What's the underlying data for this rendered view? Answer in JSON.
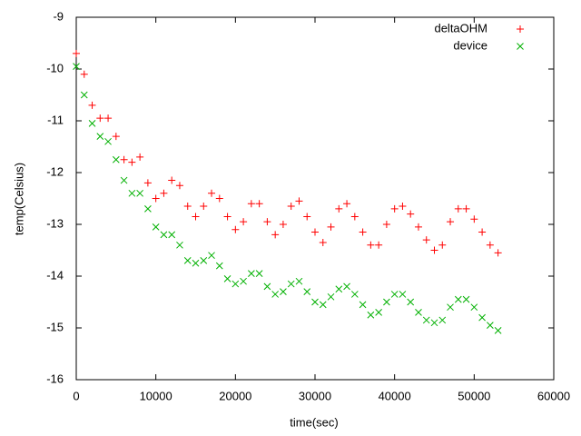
{
  "chart_data": {
    "type": "scatter",
    "xlabel": "time(sec)",
    "ylabel": "temp(Celsius)",
    "x": [
      0,
      1000,
      2000,
      3000,
      4000,
      5000,
      6000,
      7000,
      8000,
      9000,
      10000,
      11000,
      12000,
      13000,
      14000,
      15000,
      16000,
      17000,
      18000,
      19000,
      20000,
      21000,
      22000,
      23000,
      24000,
      25000,
      26000,
      27000,
      28000,
      29000,
      30000,
      31000,
      32000,
      33000,
      34000,
      35000,
      36000,
      37000,
      38000,
      39000,
      40000,
      41000,
      42000,
      43000,
      44000,
      45000,
      46000,
      47000,
      48000,
      49000,
      50000,
      51000,
      52000,
      53000
    ],
    "series": [
      {
        "name": "deltaOHM",
        "color": "#ff0000",
        "marker": "plus",
        "values": [
          -9.7,
          -10.1,
          -10.7,
          -10.95,
          -10.95,
          -11.3,
          -11.75,
          -11.8,
          -11.7,
          -12.2,
          -12.5,
          -12.4,
          -12.15,
          -12.25,
          -12.65,
          -12.85,
          -12.65,
          -12.4,
          -12.5,
          -12.85,
          -13.1,
          -12.95,
          -12.6,
          -12.6,
          -12.95,
          -13.2,
          -13.0,
          -12.65,
          -12.55,
          -12.85,
          -13.15,
          -13.35,
          -13.05,
          -12.7,
          -12.6,
          -12.85,
          -13.15,
          -13.4,
          -13.4,
          -13.0,
          -12.7,
          -12.65,
          -12.8,
          -13.05,
          -13.3,
          -13.5,
          -13.4,
          -12.95,
          -12.7,
          -12.7,
          -12.9,
          -13.15,
          -13.4,
          -13.55
        ]
      },
      {
        "name": "device",
        "color": "#00b000",
        "marker": "cross",
        "values": [
          -9.95,
          -10.5,
          -11.05,
          -11.3,
          -11.4,
          -11.75,
          -12.15,
          -12.4,
          -12.4,
          -12.7,
          -13.05,
          -13.2,
          -13.2,
          -13.4,
          -13.7,
          -13.75,
          -13.7,
          -13.6,
          -13.8,
          -14.05,
          -14.15,
          -14.1,
          -13.95,
          -13.95,
          -14.2,
          -14.35,
          -14.3,
          -14.15,
          -14.1,
          -14.3,
          -14.5,
          -14.55,
          -14.4,
          -14.25,
          -14.2,
          -14.35,
          -14.55,
          -14.75,
          -14.7,
          -14.5,
          -14.35,
          -14.35,
          -14.5,
          -14.7,
          -14.85,
          -14.9,
          -14.85,
          -14.6,
          -14.45,
          -14.45,
          -14.6,
          -14.8,
          -14.95,
          -15.05
        ]
      }
    ],
    "xlim": [
      0,
      60000
    ],
    "xticks": [
      0,
      10000,
      20000,
      30000,
      40000,
      50000,
      60000
    ],
    "ylim": [
      -16,
      -9
    ],
    "yticks": [
      -16,
      -15,
      -14,
      -13,
      -12,
      -11,
      -10,
      -9
    ],
    "grid": false,
    "legend": "top-right"
  }
}
